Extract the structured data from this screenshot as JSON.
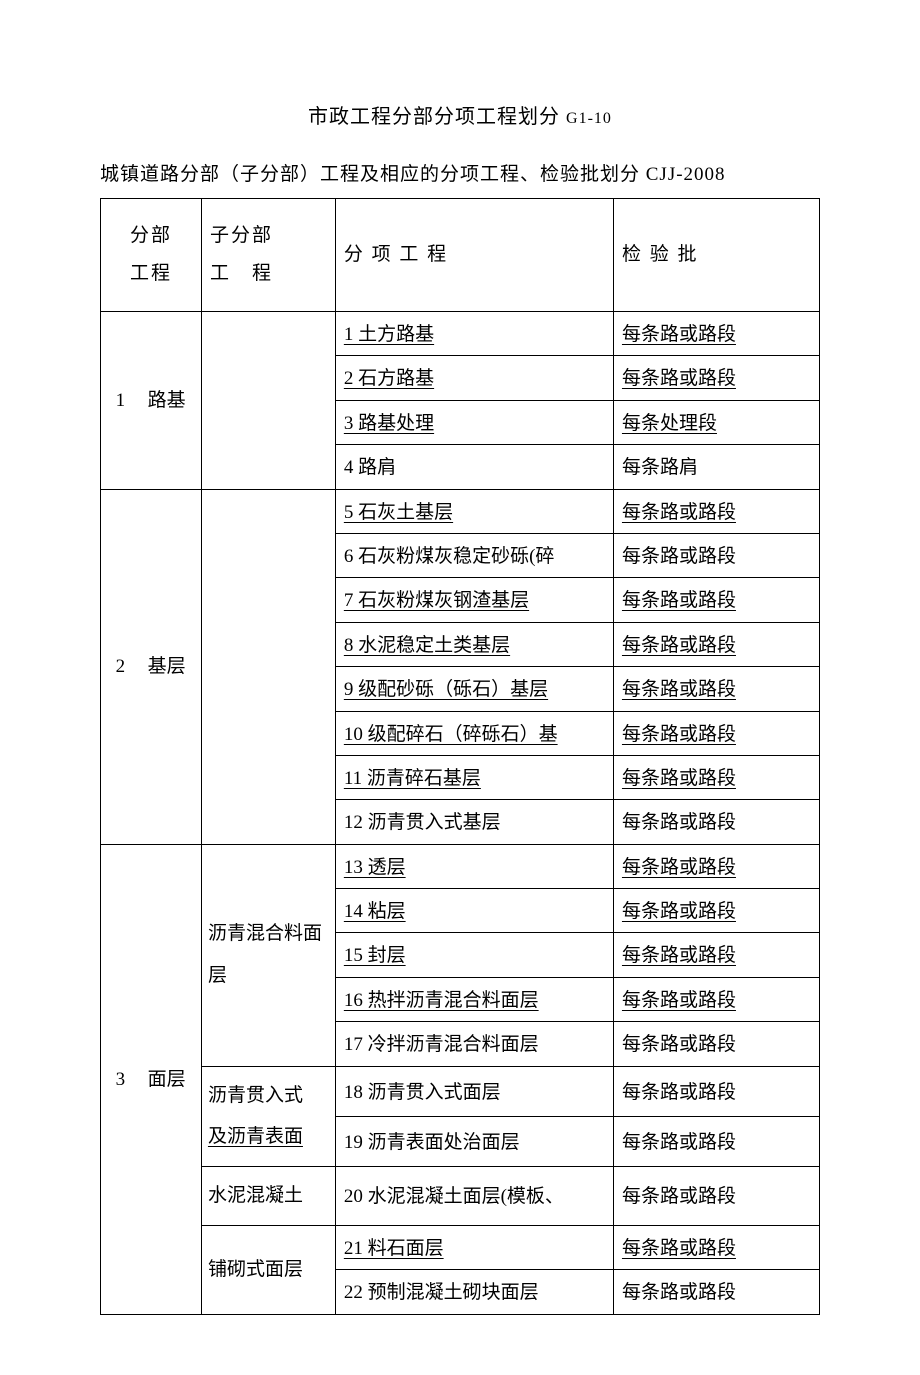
{
  "title": "市政工程分部分项工程划分",
  "title_suffix": "G1-10",
  "subtitle": "城镇道路分部（子分部）工程及相应的分项工程、检验批划分 CJJ-2008",
  "headers": {
    "part": "分部工程",
    "subpart": "子分部工　程",
    "item": "分 项 工 程",
    "batch": "检 验 批"
  },
  "sections": [
    {
      "num": "1",
      "part": "路基",
      "subpart": "",
      "rows": [
        {
          "item": "1 土方路基",
          "batch": "每条路或路段",
          "ul": true
        },
        {
          "item": "2 石方路基",
          "batch": "每条路或路段",
          "ul": true
        },
        {
          "item": "3 路基处理",
          "batch": "每条处理段",
          "ul": true
        },
        {
          "item": "4 路肩",
          "batch": "每条路肩",
          "ul": false
        }
      ]
    },
    {
      "num": "2",
      "part": "基层",
      "subpart": "",
      "rows": [
        {
          "item": "5 石灰土基层",
          "batch": "每条路或路段",
          "ul": true
        },
        {
          "item": "6 石灰粉煤灰稳定砂砾(碎",
          "batch": "每条路或路段",
          "ul": false
        },
        {
          "item": "7 石灰粉煤灰钢渣基层",
          "batch": "每条路或路段",
          "ul": true
        },
        {
          "item": "8 水泥稳定土类基层",
          "batch": "每条路或路段",
          "ul": true
        },
        {
          "item": "9 级配砂砾（砾石）基层",
          "batch": "每条路或路段",
          "ul": true
        },
        {
          "item": "10 级配碎石（碎砾石）基",
          "batch": "每条路或路段",
          "ul": true
        },
        {
          "item": "11 沥青碎石基层",
          "batch": "每条路或路段",
          "ul": true
        },
        {
          "item": "12 沥青贯入式基层",
          "batch": "每条路或路段",
          "ul": false
        }
      ]
    },
    {
      "num": "3",
      "part": "面层",
      "subparts": [
        {
          "label": "沥青混合料面层",
          "rows": [
            {
              "item": "13 透层",
              "batch": "每条路或路段",
              "ul": true
            },
            {
              "item": "14 粘层",
              "batch": "每条路或路段",
              "ul": true
            },
            {
              "item": "15 封层",
              "batch": "每条路或路段",
              "ul": true
            },
            {
              "item": "16 热拌沥青混合料面层",
              "batch": "每条路或路段",
              "ul": true
            },
            {
              "item": "17 冷拌沥青混合料面层",
              "batch": "每条路或路段",
              "ul": false
            }
          ]
        },
        {
          "label": "沥青贯入式及沥青表面",
          "rows": [
            {
              "item": "18 沥青贯入式面层",
              "batch": "每条路或路段",
              "ul": false
            },
            {
              "item": "19 沥青表面处治面层",
              "batch": "每条路或路段",
              "ul": false
            }
          ]
        },
        {
          "label": "水泥混凝土",
          "rows": [
            {
              "item": "20 水泥混凝土面层(模板、",
              "batch": "每条路或路段",
              "ul": false
            }
          ]
        },
        {
          "label": "铺砌式面层",
          "rows": [
            {
              "item": "21 料石面层",
              "batch": "每条路或路段",
              "ul": true
            },
            {
              "item": "22 预制混凝土砌块面层",
              "batch": "每条路或路段",
              "ul": false
            }
          ]
        }
      ]
    }
  ]
}
